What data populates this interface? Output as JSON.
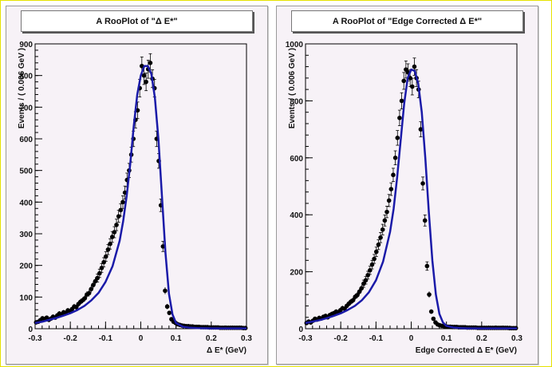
{
  "chart_data": [
    {
      "type": "scatter",
      "title": "A RooPlot of \"Δ E*\"",
      "xlabel": "Δ E* (GeV)",
      "ylabel": "Events / ( 0.006 GeV )",
      "xlim": [
        -0.3,
        0.3
      ],
      "ylim": [
        0,
        900
      ],
      "xticks": [
        "-0.3",
        "-0.2",
        "-0.1",
        "0",
        "0.1",
        "0.2",
        "0.3"
      ],
      "yticks": [
        "0",
        "100",
        "200",
        "300",
        "400",
        "500",
        "600",
        "700",
        "800",
        "900"
      ],
      "ytick_values": [
        0,
        100,
        200,
        300,
        400,
        500,
        600,
        700,
        800,
        900
      ],
      "series": [
        {
          "kind": "points",
          "x": [
            -0.297,
            -0.291,
            -0.285,
            -0.279,
            -0.273,
            -0.267,
            -0.261,
            -0.255,
            -0.249,
            -0.243,
            -0.237,
            -0.231,
            -0.225,
            -0.219,
            -0.213,
            -0.207,
            -0.201,
            -0.195,
            -0.189,
            -0.183,
            -0.177,
            -0.171,
            -0.165,
            -0.159,
            -0.153,
            -0.147,
            -0.141,
            -0.135,
            -0.129,
            -0.123,
            -0.117,
            -0.111,
            -0.105,
            -0.099,
            -0.093,
            -0.087,
            -0.081,
            -0.075,
            -0.069,
            -0.063,
            -0.057,
            -0.051,
            -0.045,
            -0.039,
            -0.033,
            -0.027,
            -0.021,
            -0.015,
            -0.009,
            -0.003,
            0.003,
            0.009,
            0.015,
            0.021,
            0.027,
            0.033,
            0.039,
            0.045,
            0.051,
            0.057,
            0.063,
            0.069,
            0.075,
            0.081,
            0.087,
            0.093,
            0.099,
            0.105,
            0.111,
            0.117,
            0.123,
            0.129,
            0.135,
            0.141,
            0.147,
            0.153,
            0.159,
            0.165,
            0.171,
            0.177,
            0.183,
            0.189,
            0.195,
            0.201,
            0.207,
            0.213,
            0.219,
            0.225,
            0.231,
            0.237,
            0.243,
            0.249,
            0.255,
            0.261,
            0.267,
            0.273,
            0.279,
            0.285,
            0.291,
            0.297
          ],
          "y": [
            20,
            22,
            27,
            33,
            30,
            35,
            28,
            32,
            38,
            35,
            42,
            48,
            45,
            52,
            50,
            58,
            55,
            62,
            70,
            68,
            78,
            85,
            90,
            96,
            108,
            112,
            125,
            138,
            150,
            160,
            175,
            192,
            210,
            228,
            250,
            268,
            290,
            305,
            328,
            355,
            375,
            400,
            430,
            470,
            500,
            550,
            600,
            660,
            690,
            760,
            830,
            800,
            780,
            820,
            840,
            790,
            760,
            600,
            530,
            390,
            260,
            120,
            70,
            50,
            30,
            22,
            18,
            14,
            12,
            10,
            9,
            8,
            8,
            7,
            7,
            6,
            6,
            6,
            5,
            5,
            5,
            5,
            4,
            4,
            4,
            4,
            4,
            3,
            3,
            3,
            3,
            3,
            3,
            3,
            3,
            3,
            3,
            3,
            2,
            2
          ]
        },
        {
          "kind": "curve",
          "x": [
            -0.3,
            -0.28,
            -0.26,
            -0.24,
            -0.22,
            -0.2,
            -0.18,
            -0.16,
            -0.14,
            -0.12,
            -0.1,
            -0.08,
            -0.06,
            -0.05,
            -0.04,
            -0.03,
            -0.02,
            -0.01,
            0,
            0.01,
            0.02,
            0.03,
            0.04,
            0.05,
            0.06,
            0.07,
            0.08,
            0.09,
            0.1,
            0.12,
            0.14,
            0.16,
            0.2,
            0.25,
            0.3
          ],
          "y": [
            18,
            22,
            28,
            34,
            41,
            49,
            59,
            72,
            90,
            113,
            148,
            198,
            278,
            340,
            420,
            520,
            640,
            740,
            800,
            830,
            830,
            805,
            730,
            600,
            420,
            240,
            110,
            45,
            18,
            6,
            3,
            2,
            1,
            1,
            1
          ]
        }
      ]
    },
    {
      "type": "scatter",
      "title": "A RooPlot of \"Edge Corrected Δ E*\"",
      "xlabel": "Edge Corrected Δ E* (GeV)",
      "ylabel": "Events / ( 0.006 GeV )",
      "xlim": [
        -0.3,
        0.3
      ],
      "ylim": [
        0,
        1000
      ],
      "xticks": [
        "-0.3",
        "-0.2",
        "-0.1",
        "0",
        "0.1",
        "0.2",
        "0.3"
      ],
      "yticks": [
        "0",
        "200",
        "400",
        "600",
        "800",
        "1000"
      ],
      "ytick_values": [
        0,
        200,
        400,
        600,
        800,
        1000
      ],
      "series": [
        {
          "kind": "points",
          "x": [
            -0.297,
            -0.291,
            -0.285,
            -0.279,
            -0.273,
            -0.267,
            -0.261,
            -0.255,
            -0.249,
            -0.243,
            -0.237,
            -0.231,
            -0.225,
            -0.219,
            -0.213,
            -0.207,
            -0.201,
            -0.195,
            -0.189,
            -0.183,
            -0.177,
            -0.171,
            -0.165,
            -0.159,
            -0.153,
            -0.147,
            -0.141,
            -0.135,
            -0.129,
            -0.123,
            -0.117,
            -0.111,
            -0.105,
            -0.099,
            -0.093,
            -0.087,
            -0.081,
            -0.075,
            -0.069,
            -0.063,
            -0.057,
            -0.051,
            -0.045,
            -0.039,
            -0.033,
            -0.027,
            -0.021,
            -0.015,
            -0.009,
            -0.003,
            0.003,
            0.009,
            0.015,
            0.021,
            0.027,
            0.033,
            0.039,
            0.045,
            0.051,
            0.057,
            0.063,
            0.069,
            0.075,
            0.081,
            0.087,
            0.093,
            0.099,
            0.105,
            0.111,
            0.117,
            0.123,
            0.129,
            0.135,
            0.141,
            0.147,
            0.153,
            0.159,
            0.165,
            0.171,
            0.177,
            0.183,
            0.189,
            0.195,
            0.201,
            0.207,
            0.213,
            0.219,
            0.225,
            0.231,
            0.237,
            0.243,
            0.249,
            0.255,
            0.261,
            0.267,
            0.273,
            0.279,
            0.285,
            0.291,
            0.297
          ],
          "y": [
            20,
            25,
            22,
            28,
            35,
            32,
            38,
            36,
            42,
            45,
            40,
            48,
            52,
            55,
            60,
            58,
            65,
            72,
            70,
            80,
            88,
            95,
            100,
            112,
            118,
            130,
            142,
            158,
            170,
            188,
            205,
            225,
            245,
            270,
            295,
            320,
            348,
            380,
            410,
            450,
            490,
            540,
            600,
            670,
            740,
            800,
            870,
            910,
            900,
            880,
            850,
            920,
            880,
            840,
            700,
            510,
            380,
            220,
            120,
            60,
            35,
            22,
            15,
            12,
            10,
            9,
            8,
            7,
            7,
            6,
            6,
            6,
            5,
            5,
            5,
            5,
            4,
            4,
            4,
            4,
            4,
            3,
            3,
            3,
            3,
            3,
            3,
            3,
            3,
            3,
            3,
            3,
            3,
            3,
            3,
            3,
            2,
            2,
            2,
            2
          ]
        },
        {
          "kind": "curve",
          "x": [
            -0.3,
            -0.28,
            -0.26,
            -0.24,
            -0.22,
            -0.2,
            -0.18,
            -0.16,
            -0.14,
            -0.12,
            -0.1,
            -0.08,
            -0.06,
            -0.05,
            -0.04,
            -0.03,
            -0.02,
            -0.01,
            0,
            0.01,
            0.02,
            0.03,
            0.04,
            0.05,
            0.06,
            0.07,
            0.08,
            0.09,
            0.1,
            0.12,
            0.14,
            0.16,
            0.2,
            0.25,
            0.3
          ],
          "y": [
            20,
            25,
            30,
            37,
            45,
            54,
            66,
            80,
            100,
            128,
            170,
            235,
            340,
            420,
            530,
            660,
            790,
            880,
            910,
            905,
            860,
            760,
            600,
            410,
            240,
            120,
            52,
            22,
            10,
            4,
            2,
            1,
            1,
            1,
            1
          ]
        }
      ]
    }
  ],
  "colors": {
    "points": "#000000",
    "curve": "#1a1aa8",
    "panel_bg": "#f7f2f7"
  }
}
